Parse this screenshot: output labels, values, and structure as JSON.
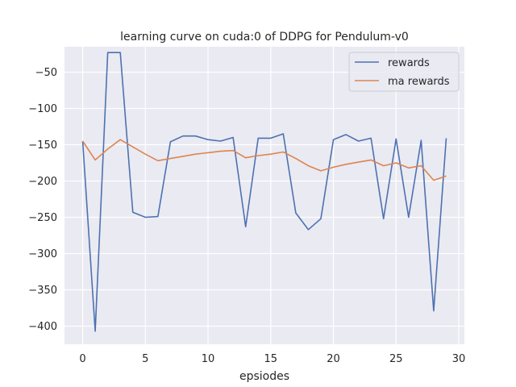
{
  "chart_data": {
    "type": "line",
    "title": "learning curve on cuda:0 of DDPG for Pendulum-v0",
    "xlabel": "epsiodes",
    "ylabel": "",
    "x": [
      0,
      1,
      2,
      3,
      4,
      5,
      6,
      7,
      8,
      9,
      10,
      11,
      12,
      13,
      14,
      15,
      16,
      17,
      18,
      19,
      20,
      21,
      22,
      23,
      24,
      25,
      26,
      27,
      28,
      29
    ],
    "xlim": [
      -1.45,
      30.45
    ],
    "ylim": [
      -425,
      -15
    ],
    "xticks": [
      0,
      5,
      10,
      15,
      20,
      25,
      30
    ],
    "yticks": [
      -50,
      -100,
      -150,
      -200,
      -250,
      -300,
      -350,
      -400
    ],
    "ytick_labels": [
      "−50",
      "−100",
      "−150",
      "−200",
      "−250",
      "−300",
      "−350",
      "−400"
    ],
    "grid": true,
    "legend_position": "top-right",
    "series": [
      {
        "name": "rewards",
        "color": "#4c72b0",
        "values": [
          -145,
          -407,
          -23,
          -23,
          -243,
          -250,
          -249,
          -146,
          -138,
          -138,
          -143,
          -145,
          -140,
          -263,
          -141,
          -141,
          -135,
          -244,
          -267,
          -252,
          -143,
          -136,
          -145,
          -141,
          -252,
          -142,
          -250,
          -144,
          -379,
          -141
        ]
      },
      {
        "name": "ma rewards",
        "color": "#dd8452",
        "values": [
          -145,
          -171,
          -156,
          -143,
          -153,
          -163,
          -172,
          -169,
          -166,
          -163,
          -161,
          -159,
          -158,
          -168,
          -165,
          -163,
          -160,
          -169,
          -179,
          -186,
          -181,
          -177,
          -174,
          -171,
          -179,
          -175,
          -182,
          -179,
          -199,
          -193
        ]
      }
    ]
  }
}
